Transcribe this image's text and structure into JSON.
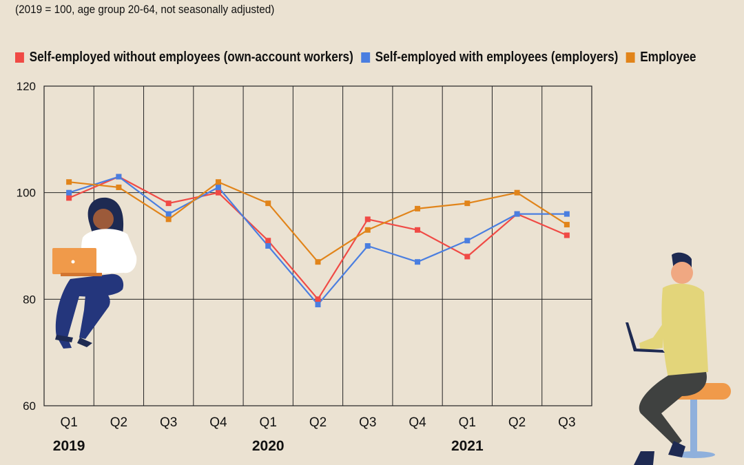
{
  "subtitle": "(2019 = 100, age group 20-64, not seasonally adjusted)",
  "legend": [
    {
      "label": "Self-employed without employees (own-account workers)",
      "color": "#f04a45"
    },
    {
      "label": "Self-employed with employees (employers)",
      "color": "#4a7ee0"
    },
    {
      "label": "Employee",
      "color": "#e1841a"
    }
  ],
  "colors": {
    "background": "#ebe2d2",
    "grid": "#222222",
    "without_employees": "#f04a45",
    "with_employees": "#4a7ee0",
    "employee": "#e1841a"
  },
  "chart_data": {
    "type": "line",
    "title": "",
    "xlabel": "",
    "ylabel": "",
    "ylim": [
      60,
      120
    ],
    "yticks": [
      60,
      80,
      100,
      120
    ],
    "grid": true,
    "legend_position": "top",
    "categories": [
      "Q1",
      "Q2",
      "Q3",
      "Q4",
      "Q1",
      "Q2",
      "Q3",
      "Q4",
      "Q1",
      "Q2",
      "Q3"
    ],
    "year_labels": [
      {
        "label": "2019",
        "category_index": 0
      },
      {
        "label": "2020",
        "category_index": 4
      },
      {
        "label": "2021",
        "category_index": 8
      }
    ],
    "series": [
      {
        "name": "Self-employed without employees (own-account workers)",
        "color": "#f04a45",
        "values": [
          99,
          103,
          98,
          100,
          91,
          80,
          95,
          93,
          88,
          96,
          92
        ]
      },
      {
        "name": "Self-employed with employees (employers)",
        "color": "#4a7ee0",
        "values": [
          100,
          103,
          96,
          101,
          90,
          79,
          90,
          87,
          91,
          96,
          96
        ]
      },
      {
        "name": "Employee",
        "color": "#e1841a",
        "values": [
          102,
          101,
          95,
          102,
          98,
          87,
          93,
          97,
          98,
          100,
          94
        ]
      }
    ]
  }
}
